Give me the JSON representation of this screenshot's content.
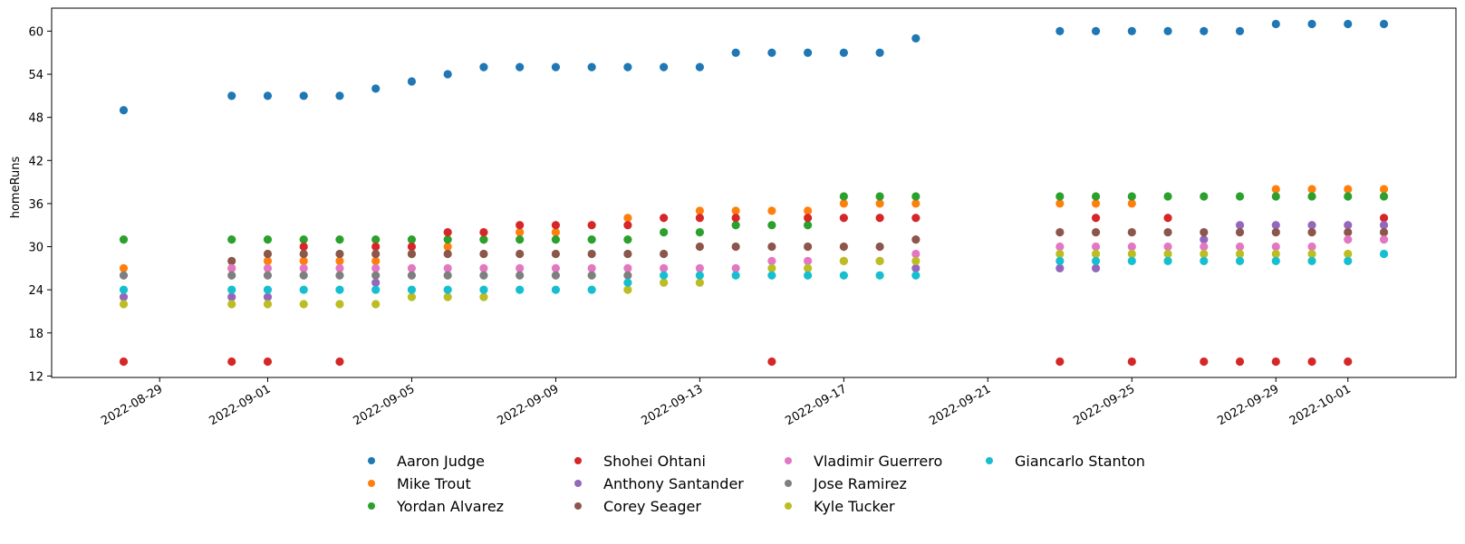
{
  "chart_data": {
    "type": "scatter",
    "title": "",
    "xlabel": "",
    "ylabel": "homeRuns",
    "ylim": [
      11.8,
      63.2
    ],
    "xlim": [
      "2022-08-26",
      "2022-10-04"
    ],
    "yticks": [
      12,
      18,
      24,
      30,
      36,
      42,
      48,
      54,
      60
    ],
    "xticks": [
      "2022-08-29",
      "2022-09-01",
      "2022-09-05",
      "2022-09-09",
      "2022-09-13",
      "2022-09-17",
      "2022-09-21",
      "2022-09-25",
      "2022-09-29",
      "2022-10-01"
    ],
    "grid": false,
    "legend_position": "bottom-center",
    "series": [
      {
        "name": "Aaron Judge",
        "color": "#1f77b4",
        "points": [
          [
            "2022-08-28",
            49
          ],
          [
            "2022-08-31",
            51
          ],
          [
            "2022-09-01",
            51
          ],
          [
            "2022-09-02",
            51
          ],
          [
            "2022-09-03",
            51
          ],
          [
            "2022-09-04",
            52
          ],
          [
            "2022-09-05",
            53
          ],
          [
            "2022-09-06",
            54
          ],
          [
            "2022-09-07",
            55
          ],
          [
            "2022-09-08",
            55
          ],
          [
            "2022-09-09",
            55
          ],
          [
            "2022-09-10",
            55
          ],
          [
            "2022-09-11",
            55
          ],
          [
            "2022-09-12",
            55
          ],
          [
            "2022-09-13",
            55
          ],
          [
            "2022-09-14",
            57
          ],
          [
            "2022-09-15",
            57
          ],
          [
            "2022-09-16",
            57
          ],
          [
            "2022-09-17",
            57
          ],
          [
            "2022-09-18",
            57
          ],
          [
            "2022-09-19",
            59
          ],
          [
            "2022-09-23",
            60
          ],
          [
            "2022-09-24",
            60
          ],
          [
            "2022-09-25",
            60
          ],
          [
            "2022-09-26",
            60
          ],
          [
            "2022-09-27",
            60
          ],
          [
            "2022-09-28",
            60
          ],
          [
            "2022-09-29",
            61
          ],
          [
            "2022-09-30",
            61
          ],
          [
            "2022-10-01",
            61
          ],
          [
            "2022-10-02",
            61
          ]
        ]
      },
      {
        "name": "Mike Trout",
        "color": "#ff7f0e",
        "points": [
          [
            "2022-08-28",
            27
          ],
          [
            "2022-08-31",
            27
          ],
          [
            "2022-09-01",
            28
          ],
          [
            "2022-09-02",
            28
          ],
          [
            "2022-09-03",
            28
          ],
          [
            "2022-09-04",
            28
          ],
          [
            "2022-09-05",
            29
          ],
          [
            "2022-09-06",
            30
          ],
          [
            "2022-09-07",
            31
          ],
          [
            "2022-09-08",
            32
          ],
          [
            "2022-09-09",
            32
          ],
          [
            "2022-09-11",
            34
          ],
          [
            "2022-09-13",
            35
          ],
          [
            "2022-09-14",
            35
          ],
          [
            "2022-09-15",
            35
          ],
          [
            "2022-09-16",
            35
          ],
          [
            "2022-09-17",
            36
          ],
          [
            "2022-09-18",
            36
          ],
          [
            "2022-09-19",
            36
          ],
          [
            "2022-09-23",
            36
          ],
          [
            "2022-09-24",
            36
          ],
          [
            "2022-09-25",
            36
          ],
          [
            "2022-09-29",
            38
          ],
          [
            "2022-09-30",
            38
          ],
          [
            "2022-10-01",
            38
          ],
          [
            "2022-10-02",
            38
          ]
        ]
      },
      {
        "name": "Yordan Alvarez",
        "color": "#2ca02c",
        "points": [
          [
            "2022-08-28",
            31
          ],
          [
            "2022-08-31",
            31
          ],
          [
            "2022-09-01",
            31
          ],
          [
            "2022-09-02",
            31
          ],
          [
            "2022-09-03",
            31
          ],
          [
            "2022-09-04",
            31
          ],
          [
            "2022-09-05",
            31
          ],
          [
            "2022-09-06",
            31
          ],
          [
            "2022-09-07",
            31
          ],
          [
            "2022-09-08",
            31
          ],
          [
            "2022-09-09",
            31
          ],
          [
            "2022-09-10",
            31
          ],
          [
            "2022-09-11",
            31
          ],
          [
            "2022-09-12",
            32
          ],
          [
            "2022-09-13",
            32
          ],
          [
            "2022-09-14",
            33
          ],
          [
            "2022-09-15",
            33
          ],
          [
            "2022-09-16",
            33
          ],
          [
            "2022-09-17",
            37
          ],
          [
            "2022-09-18",
            37
          ],
          [
            "2022-09-19",
            37
          ],
          [
            "2022-09-23",
            37
          ],
          [
            "2022-09-24",
            37
          ],
          [
            "2022-09-25",
            37
          ],
          [
            "2022-09-26",
            37
          ],
          [
            "2022-09-27",
            37
          ],
          [
            "2022-09-28",
            37
          ],
          [
            "2022-09-29",
            37
          ],
          [
            "2022-09-30",
            37
          ],
          [
            "2022-10-01",
            37
          ],
          [
            "2022-10-02",
            37
          ]
        ]
      },
      {
        "name": "Shohei Ohtani",
        "color": "#d62728",
        "points": [
          [
            "2022-08-28",
            14
          ],
          [
            "2022-08-31",
            14
          ],
          [
            "2022-09-01",
            14
          ],
          [
            "2022-09-02",
            30
          ],
          [
            "2022-09-03",
            14
          ],
          [
            "2022-09-04",
            30
          ],
          [
            "2022-09-05",
            30
          ],
          [
            "2022-09-06",
            32
          ],
          [
            "2022-09-07",
            32
          ],
          [
            "2022-09-08",
            33
          ],
          [
            "2022-09-09",
            33
          ],
          [
            "2022-09-10",
            33
          ],
          [
            "2022-09-11",
            33
          ],
          [
            "2022-09-12",
            34
          ],
          [
            "2022-09-13",
            34
          ],
          [
            "2022-09-14",
            34
          ],
          [
            "2022-09-15",
            14
          ],
          [
            "2022-09-16",
            34
          ],
          [
            "2022-09-17",
            34
          ],
          [
            "2022-09-18",
            34
          ],
          [
            "2022-09-19",
            34
          ],
          [
            "2022-09-23",
            14
          ],
          [
            "2022-09-24",
            34
          ],
          [
            "2022-09-25",
            14
          ],
          [
            "2022-09-26",
            34
          ],
          [
            "2022-09-27",
            14
          ],
          [
            "2022-09-28",
            14
          ],
          [
            "2022-09-29",
            14
          ],
          [
            "2022-09-30",
            14
          ],
          [
            "2022-10-01",
            14
          ],
          [
            "2022-10-02",
            34
          ]
        ]
      },
      {
        "name": "Anthony Santander",
        "color": "#9467bd",
        "points": [
          [
            "2022-08-28",
            23
          ],
          [
            "2022-08-31",
            23
          ],
          [
            "2022-09-01",
            23
          ],
          [
            "2022-09-04",
            25
          ],
          [
            "2022-09-19",
            27
          ],
          [
            "2022-09-23",
            27
          ],
          [
            "2022-09-24",
            27
          ],
          [
            "2022-09-27",
            31
          ],
          [
            "2022-09-28",
            33
          ],
          [
            "2022-09-29",
            33
          ],
          [
            "2022-09-30",
            33
          ],
          [
            "2022-10-01",
            33
          ],
          [
            "2022-10-02",
            33
          ]
        ]
      },
      {
        "name": "Corey Seager",
        "color": "#8c564b",
        "points": [
          [
            "2022-08-31",
            28
          ],
          [
            "2022-09-01",
            29
          ],
          [
            "2022-09-02",
            29
          ],
          [
            "2022-09-03",
            29
          ],
          [
            "2022-09-04",
            29
          ],
          [
            "2022-09-05",
            29
          ],
          [
            "2022-09-06",
            29
          ],
          [
            "2022-09-07",
            29
          ],
          [
            "2022-09-08",
            29
          ],
          [
            "2022-09-09",
            29
          ],
          [
            "2022-09-10",
            29
          ],
          [
            "2022-09-11",
            29
          ],
          [
            "2022-09-12",
            29
          ],
          [
            "2022-09-13",
            30
          ],
          [
            "2022-09-14",
            30
          ],
          [
            "2022-09-15",
            30
          ],
          [
            "2022-09-16",
            30
          ],
          [
            "2022-09-17",
            30
          ],
          [
            "2022-09-18",
            30
          ],
          [
            "2022-09-19",
            31
          ],
          [
            "2022-09-23",
            32
          ],
          [
            "2022-09-24",
            32
          ],
          [
            "2022-09-25",
            32
          ],
          [
            "2022-09-26",
            32
          ],
          [
            "2022-09-27",
            32
          ],
          [
            "2022-09-28",
            32
          ],
          [
            "2022-09-29",
            32
          ],
          [
            "2022-09-30",
            32
          ],
          [
            "2022-10-01",
            32
          ],
          [
            "2022-10-02",
            32
          ]
        ]
      },
      {
        "name": "Vladimir Guerrero",
        "color": "#e377c2",
        "points": [
          [
            "2022-08-31",
            27
          ],
          [
            "2022-09-01",
            27
          ],
          [
            "2022-09-02",
            27
          ],
          [
            "2022-09-03",
            27
          ],
          [
            "2022-09-04",
            27
          ],
          [
            "2022-09-05",
            27
          ],
          [
            "2022-09-06",
            27
          ],
          [
            "2022-09-07",
            27
          ],
          [
            "2022-09-08",
            27
          ],
          [
            "2022-09-09",
            27
          ],
          [
            "2022-09-10",
            27
          ],
          [
            "2022-09-11",
            27
          ],
          [
            "2022-09-12",
            27
          ],
          [
            "2022-09-13",
            27
          ],
          [
            "2022-09-14",
            27
          ],
          [
            "2022-09-15",
            28
          ],
          [
            "2022-09-16",
            28
          ],
          [
            "2022-09-17",
            28
          ],
          [
            "2022-09-18",
            28
          ],
          [
            "2022-09-19",
            29
          ],
          [
            "2022-09-23",
            30
          ],
          [
            "2022-09-24",
            30
          ],
          [
            "2022-09-25",
            30
          ],
          [
            "2022-09-26",
            30
          ],
          [
            "2022-09-27",
            30
          ],
          [
            "2022-09-28",
            30
          ],
          [
            "2022-09-29",
            30
          ],
          [
            "2022-09-30",
            30
          ],
          [
            "2022-10-01",
            31
          ],
          [
            "2022-10-02",
            31
          ]
        ]
      },
      {
        "name": "Jose Ramirez",
        "color": "#7f7f7f",
        "points": [
          [
            "2022-08-28",
            26
          ],
          [
            "2022-08-31",
            26
          ],
          [
            "2022-09-01",
            26
          ],
          [
            "2022-09-02",
            26
          ],
          [
            "2022-09-03",
            26
          ],
          [
            "2022-09-04",
            26
          ],
          [
            "2022-09-05",
            26
          ],
          [
            "2022-09-06",
            26
          ],
          [
            "2022-09-07",
            26
          ],
          [
            "2022-09-08",
            26
          ],
          [
            "2022-09-09",
            26
          ],
          [
            "2022-09-10",
            26
          ],
          [
            "2022-09-11",
            26
          ]
        ]
      },
      {
        "name": "Kyle Tucker",
        "color": "#bcbd22",
        "points": [
          [
            "2022-08-28",
            22
          ],
          [
            "2022-08-31",
            22
          ],
          [
            "2022-09-01",
            22
          ],
          [
            "2022-09-02",
            22
          ],
          [
            "2022-09-03",
            22
          ],
          [
            "2022-09-04",
            22
          ],
          [
            "2022-09-05",
            23
          ],
          [
            "2022-09-06",
            23
          ],
          [
            "2022-09-07",
            23
          ],
          [
            "2022-09-11",
            24
          ],
          [
            "2022-09-12",
            25
          ],
          [
            "2022-09-13",
            25
          ],
          [
            "2022-09-15",
            27
          ],
          [
            "2022-09-16",
            27
          ],
          [
            "2022-09-17",
            28
          ],
          [
            "2022-09-18",
            28
          ],
          [
            "2022-09-19",
            28
          ],
          [
            "2022-09-23",
            29
          ],
          [
            "2022-09-24",
            29
          ],
          [
            "2022-09-25",
            29
          ],
          [
            "2022-09-26",
            29
          ],
          [
            "2022-09-27",
            29
          ],
          [
            "2022-09-28",
            29
          ],
          [
            "2022-09-29",
            29
          ],
          [
            "2022-09-30",
            29
          ],
          [
            "2022-10-01",
            29
          ]
        ]
      },
      {
        "name": "Giancarlo Stanton",
        "color": "#17becf",
        "points": [
          [
            "2022-08-28",
            24
          ],
          [
            "2022-08-31",
            24
          ],
          [
            "2022-09-01",
            24
          ],
          [
            "2022-09-02",
            24
          ],
          [
            "2022-09-03",
            24
          ],
          [
            "2022-09-04",
            24
          ],
          [
            "2022-09-05",
            24
          ],
          [
            "2022-09-06",
            24
          ],
          [
            "2022-09-07",
            24
          ],
          [
            "2022-09-08",
            24
          ],
          [
            "2022-09-09",
            24
          ],
          [
            "2022-09-10",
            24
          ],
          [
            "2022-09-11",
            25
          ],
          [
            "2022-09-12",
            26
          ],
          [
            "2022-09-13",
            26
          ],
          [
            "2022-09-14",
            26
          ],
          [
            "2022-09-15",
            26
          ],
          [
            "2022-09-16",
            26
          ],
          [
            "2022-09-17",
            26
          ],
          [
            "2022-09-18",
            26
          ],
          [
            "2022-09-19",
            26
          ],
          [
            "2022-09-23",
            28
          ],
          [
            "2022-09-24",
            28
          ],
          [
            "2022-09-25",
            28
          ],
          [
            "2022-09-26",
            28
          ],
          [
            "2022-09-27",
            28
          ],
          [
            "2022-09-28",
            28
          ],
          [
            "2022-09-29",
            28
          ],
          [
            "2022-09-30",
            28
          ],
          [
            "2022-10-01",
            28
          ],
          [
            "2022-10-02",
            29
          ]
        ]
      }
    ]
  }
}
